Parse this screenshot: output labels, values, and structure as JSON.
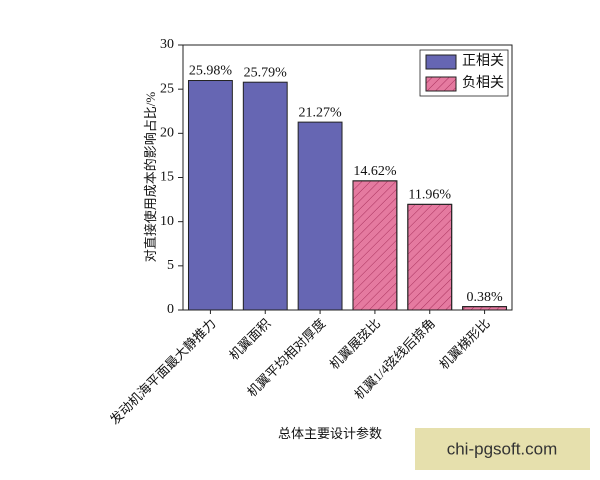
{
  "chart_data": {
    "type": "bar",
    "y_label": "对直接使用成本的影响占比/%",
    "x_label": "总体主要设计参数",
    "categories": [
      "发动机海平面最大静推力",
      "机翼面积",
      "机翼平均相对厚度",
      "机翼展弦比",
      "机翼1/4弦线后掠角",
      "机翼梯形比"
    ],
    "series": [
      {
        "name": "正相关",
        "color": "#6666b3",
        "values": [
          25.98,
          25.79,
          21.27,
          null,
          null,
          null
        ],
        "value_labels": [
          "25.98%",
          "25.79%",
          "21.27%",
          null,
          null,
          null
        ]
      },
      {
        "name": "负相关",
        "color": "#e57aa0",
        "hatch": true,
        "values": [
          null,
          null,
          null,
          14.62,
          11.96,
          0.38
        ],
        "value_labels": [
          null,
          null,
          null,
          "14.62%",
          "11.96%",
          "0.38%"
        ]
      }
    ],
    "ylim": [
      0,
      30
    ],
    "yticks": [
      0,
      5,
      10,
      15,
      20,
      25,
      30
    ],
    "legend": "upper right"
  },
  "watermark": "chi-pgsoft.com"
}
